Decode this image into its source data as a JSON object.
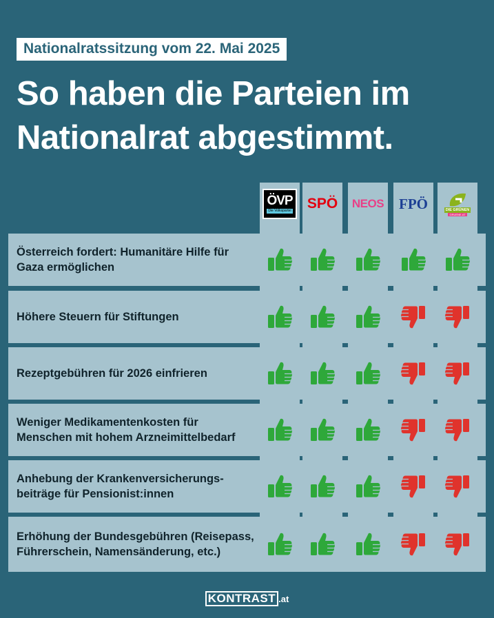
{
  "header": {
    "tag": "Nationalratssitzung vom 22. Mai 2025",
    "title_line1": "So haben die Parteien im",
    "title_line2": "Nationalrat abgestimmt."
  },
  "parties": [
    {
      "name": "ÖVP",
      "sub": "Die Volkspartei",
      "color": "#000000"
    },
    {
      "name": "SPÖ",
      "color": "#e3000f"
    },
    {
      "name": "NEOS",
      "color": "#e84188"
    },
    {
      "name": "FPÖ",
      "color": "#1c3f94"
    },
    {
      "name": "DIE GRÜNEN",
      "sub": "GRUENE.AT",
      "color": "#8bb31d"
    }
  ],
  "rows": [
    {
      "label": "Österreich fordert: Humanitäre Hilfe für Gaza ermöglichen",
      "votes": [
        "yes",
        "yes",
        "yes",
        "yes",
        "yes"
      ]
    },
    {
      "label": "Höhere Steuern für Stiftungen",
      "votes": [
        "yes",
        "yes",
        "yes",
        "no",
        "no"
      ]
    },
    {
      "label": "Rezeptgebühren für 2026 einfrieren",
      "votes": [
        "yes",
        "yes",
        "yes",
        "no",
        "no"
      ]
    },
    {
      "label": "Weniger Medikamentenkosten für Menschen mit hohem Arzneimittelbedarf",
      "votes": [
        "yes",
        "yes",
        "yes",
        "no",
        "no"
      ]
    },
    {
      "label": "Anhebung der Krankenversicherungs-beiträge für Pensionist:innen",
      "votes": [
        "yes",
        "yes",
        "yes",
        "no",
        "no"
      ]
    },
    {
      "label": "Erhöhung der Bundesgebühren (Reisepass, Führerschein, Namensänderung, etc.)",
      "votes": [
        "yes",
        "yes",
        "yes",
        "no",
        "no"
      ]
    }
  ],
  "colors": {
    "background": "#2a6478",
    "panel": "#a6c3ce",
    "yes": "#2ea83a",
    "no": "#e0332c"
  },
  "icons": {
    "yes": "thumbs-up-icon",
    "no": "thumbs-down-icon"
  },
  "footer": {
    "brand": "KONTRAST",
    "domain": ".at"
  }
}
